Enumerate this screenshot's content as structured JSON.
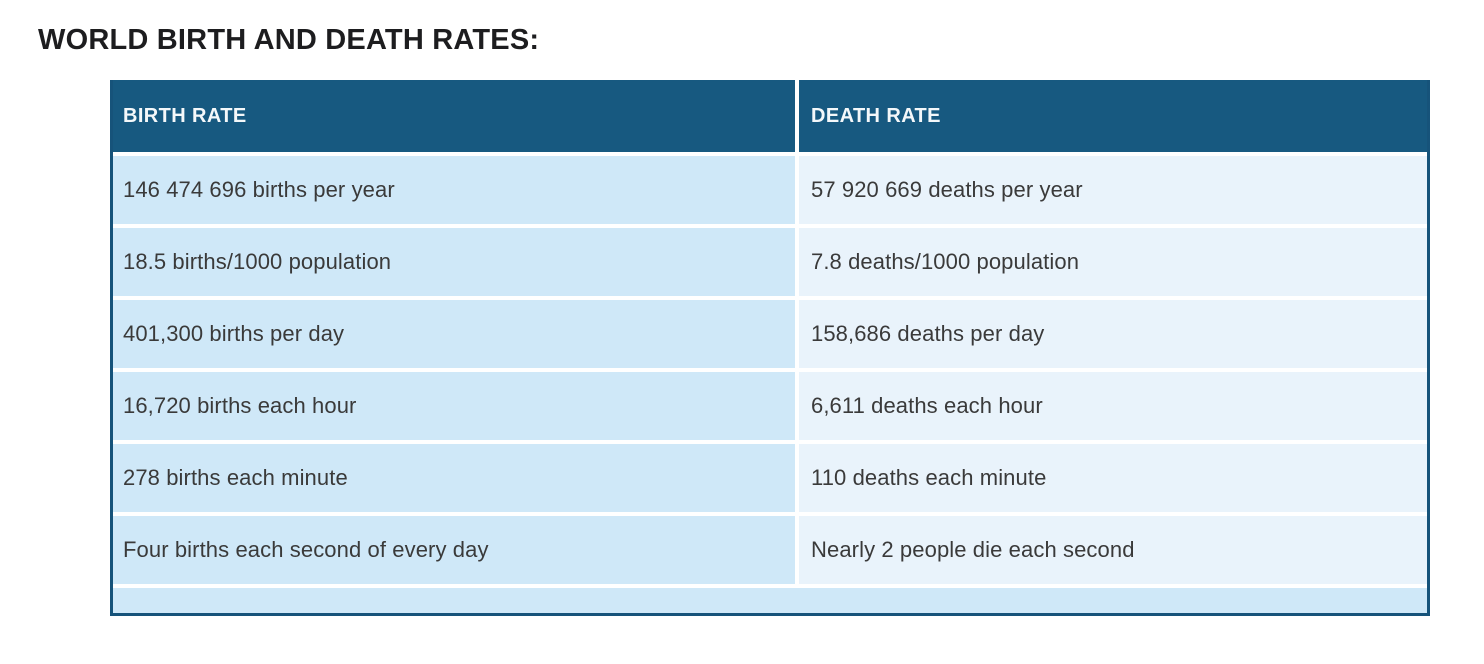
{
  "title": "WORLD BIRTH AND DEATH RATES:",
  "table": {
    "columns": [
      {
        "label": "BIRTH RATE"
      },
      {
        "label": "DEATH RATE"
      }
    ],
    "rows": [
      {
        "birth": "146 474 696 births per year",
        "death": "57 920 669 deaths per year"
      },
      {
        "birth": "18.5 births/1000 population",
        "death": "7.8 deaths/1000 population"
      },
      {
        "birth": "401,300 births per day",
        "death": "158,686 deaths per day"
      },
      {
        "birth": "16,720 births each hour",
        "death": "6,611 deaths each hour"
      },
      {
        "birth": "278 births each minute",
        "death": "110 deaths each minute"
      },
      {
        "birth": "Four births each second of every day",
        "death": "Nearly 2 people die each second"
      }
    ],
    "colors": {
      "header_bg": "#175980",
      "header_text": "#f4f8fa",
      "birth_cell_bg": "#cfe8f8",
      "death_cell_bg": "#e9f3fb",
      "footer_bg": "#cfe8f8",
      "outer_border": "#16537a",
      "row_text": "#3a3a3a",
      "title_text": "#1d1d1f",
      "page_bg": "#ffffff"
    }
  },
  "chart_data": {
    "type": "table",
    "title": "WORLD BIRTH AND DEATH RATES:",
    "columns": [
      "BIRTH RATE",
      "DEATH RATE"
    ],
    "rows": [
      [
        "146 474 696 births per year",
        "57 920 669 deaths per year"
      ],
      [
        "18.5 births/1000 population",
        "7.8 deaths/1000 population"
      ],
      [
        "401,300 births per day",
        "158,686 deaths per day"
      ],
      [
        "16,720 births each hour",
        "6,611 deaths each hour"
      ],
      [
        "278 births each minute",
        "110 deaths each minute"
      ],
      [
        "Four births each second of every day",
        "Nearly 2 people die each second"
      ]
    ]
  }
}
